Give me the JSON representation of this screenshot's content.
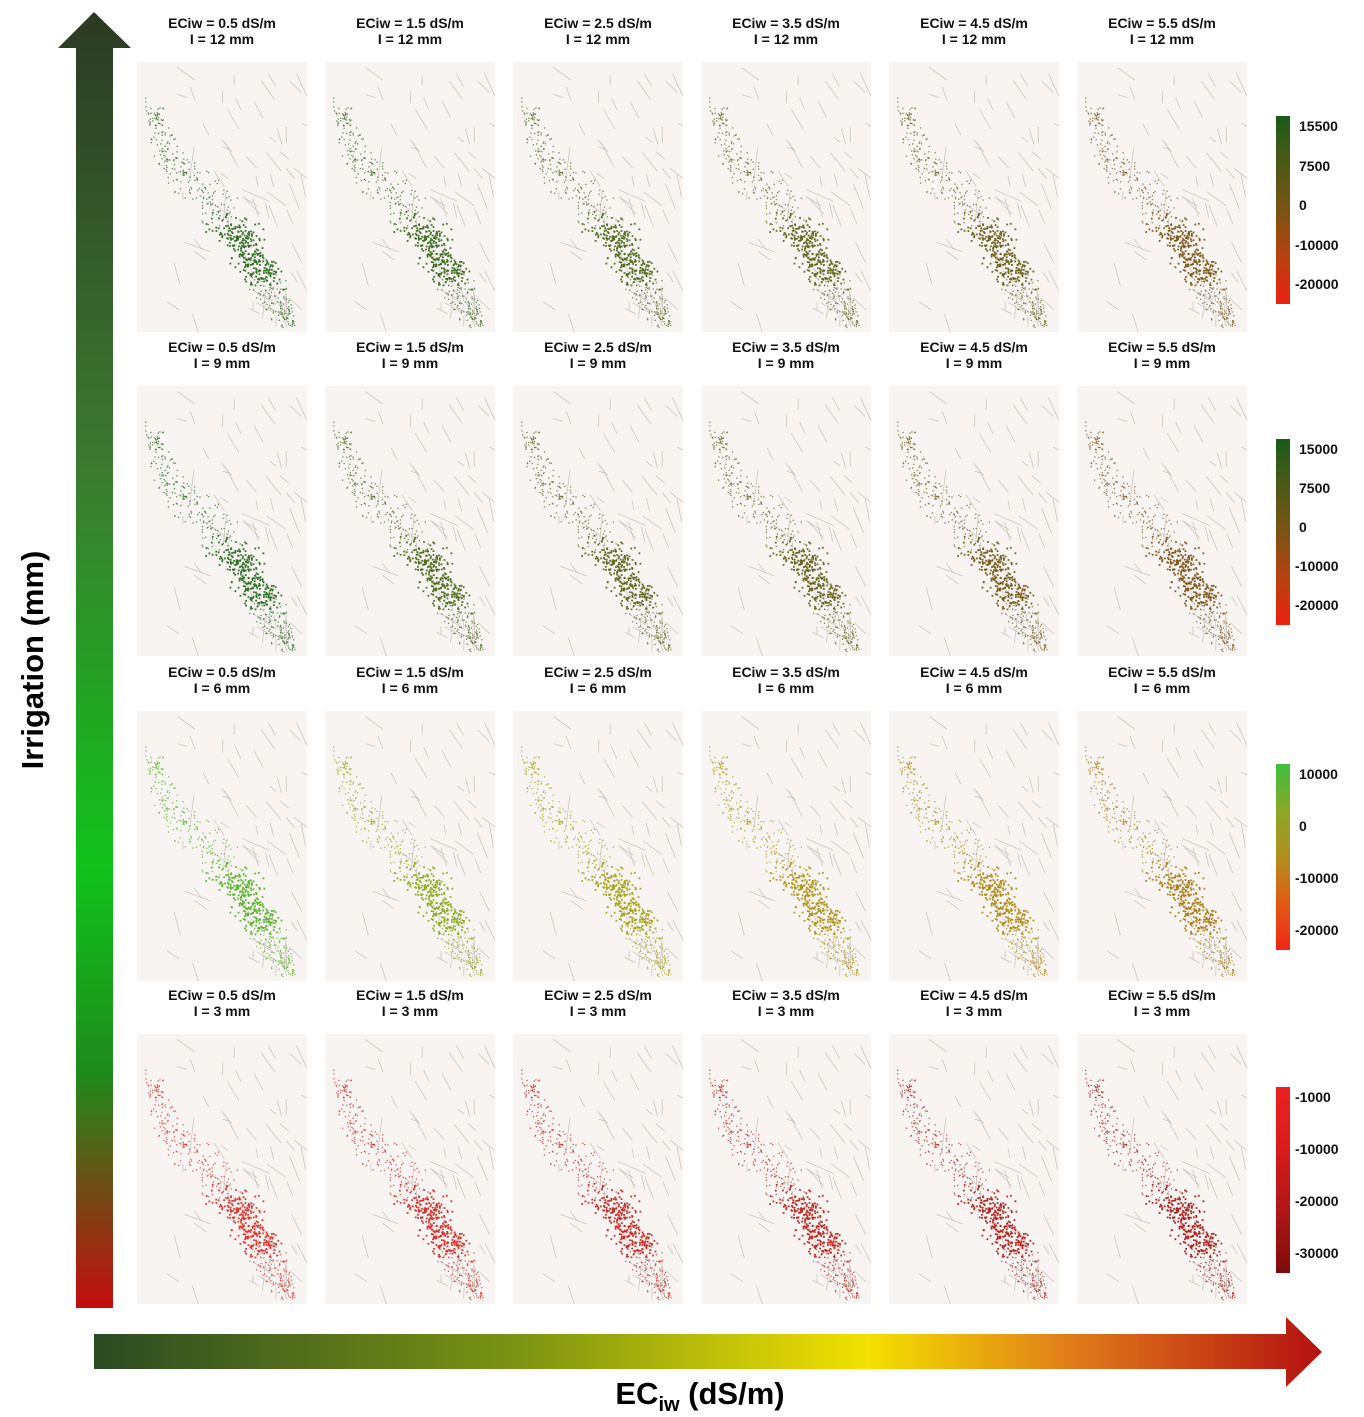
{
  "axes": {
    "y_label": "Irrigation (mm)",
    "x_label_main": "EC",
    "x_label_sub": "iw",
    "x_label_unit": " (dS/m)"
  },
  "rows": [
    {
      "irrigation_mm": 12,
      "titles": [
        [
          "ECiw = 0.5 dS/m",
          "I = 12 mm"
        ],
        [
          "ECiw = 1.5 dS/m",
          "I = 12 mm"
        ],
        [
          "ECiw = 2.5 dS/m",
          "I = 12 mm"
        ],
        [
          "ECiw = 3.5 dS/m",
          "I = 12 mm"
        ],
        [
          "ECiw = 4.5 dS/m",
          "I = 12 mm"
        ],
        [
          "ECiw = 5.5 dS/m",
          "I = 12 mm"
        ]
      ],
      "colors": [
        "#2e6b23",
        "#3b6a1f",
        "#4e6a1c",
        "#5f651b",
        "#6b5e1a",
        "#7a581b"
      ],
      "colorbar": {
        "ticks": [
          "15500",
          "7500",
          "0",
          "-10000",
          "-20000"
        ],
        "gradient": [
          "#1a5a1a",
          "#4c5a17",
          "#7a5314",
          "#b8420f",
          "#ee2010"
        ]
      }
    },
    {
      "irrigation_mm": 9,
      "titles": [
        [
          "ECiw = 0.5 dS/m",
          "I = 9 mm"
        ],
        [
          "ECiw = 1.5 dS/m",
          "I = 9 mm"
        ],
        [
          "ECiw = 2.5 dS/m",
          "I = 9 mm"
        ],
        [
          "ECiw = 3.5 dS/m",
          "I = 9 mm"
        ],
        [
          "ECiw = 4.5 dS/m",
          "I = 9 mm"
        ],
        [
          "ECiw = 5.5 dS/m",
          "I = 9 mm"
        ]
      ],
      "colors": [
        "#2a6e26",
        "#4a6a1e",
        "#5a671c",
        "#68601a",
        "#745a19",
        "#7d531a"
      ],
      "colorbar": {
        "ticks": [
          "15000",
          "7500",
          "0",
          "-10000",
          "-20000"
        ],
        "gradient": [
          "#1a5a1a",
          "#4c5a17",
          "#7a5314",
          "#b8420f",
          "#ee2010"
        ]
      }
    },
    {
      "irrigation_mm": 6,
      "titles": [
        [
          "ECiw = 0.5 dS/m",
          "I = 6 mm"
        ],
        [
          "ECiw = 1.5 dS/m",
          "I = 6 mm"
        ],
        [
          "ECiw = 2.5 dS/m",
          "I = 6 mm"
        ],
        [
          "ECiw = 3.5 dS/m",
          "I = 6 mm"
        ],
        [
          "ECiw = 4.5 dS/m",
          "I = 6 mm"
        ],
        [
          "ECiw = 5.5 dS/m",
          "I = 6 mm"
        ]
      ],
      "colors": [
        "#5bb22e",
        "#8cab23",
        "#a8a01c",
        "#b0951a",
        "#ae8a18",
        "#aa7d1b"
      ],
      "colorbar": {
        "ticks": [
          "10000",
          "0",
          "-10000",
          "-20000"
        ],
        "gradient": [
          "#3fbf3f",
          "#8aa827",
          "#b0901c",
          "#e25a14",
          "#f2261a"
        ]
      }
    },
    {
      "irrigation_mm": 3,
      "titles": [
        [
          "ECiw = 0.5 dS/m",
          "I = 3 mm"
        ],
        [
          "ECiw = 1.5 dS/m",
          "I = 3 mm"
        ],
        [
          "ECiw = 2.5 dS/m",
          "I = 3 mm"
        ],
        [
          "ECiw = 3.5 dS/m",
          "I = 3 mm"
        ],
        [
          "ECiw = 4.5 dS/m",
          "I = 3 mm"
        ],
        [
          "ECiw = 5.5 dS/m",
          "I = 3 mm"
        ]
      ],
      "colors": [
        "#e0302c",
        "#d42a27",
        "#c92724",
        "#be2421",
        "#b3211f",
        "#a81f1d"
      ],
      "colorbar": {
        "ticks": [
          "-1000",
          "-10000",
          "-20000",
          "-30000"
        ],
        "gradient": [
          "#ee2020",
          "#d81c1c",
          "#b01616",
          "#7e0c0c"
        ]
      }
    }
  ]
}
